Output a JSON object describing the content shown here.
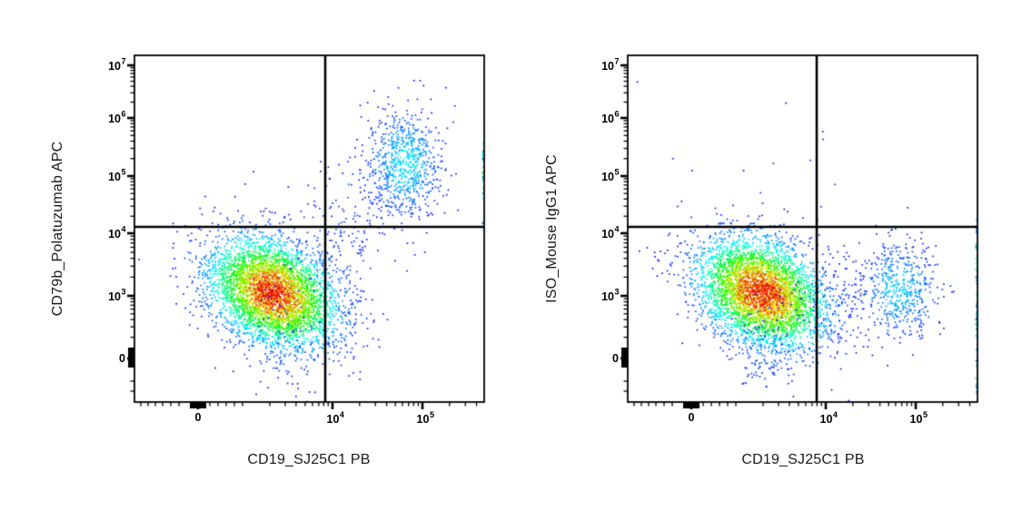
{
  "figure": {
    "background": "#ffffff",
    "plot_border_color": "#000000",
    "gate_color": "#000000",
    "point_colors_note": "density pseudocolor (jet): blue sparse to red dense",
    "density_colormap": [
      "#0000ff",
      "#00ffff",
      "#00cc00",
      "#ffff00",
      "#ff8800",
      "#ff0000"
    ]
  },
  "chart_data": [
    {
      "type": "scatter",
      "subtype": "flow-cytometry-density-dot-plot",
      "title": "",
      "xlabel": "CD19_SJ25C1 PB",
      "ylabel": "CD79b_Polatuzumab APC",
      "x_axis": {
        "scale": "biexponential",
        "range": [
          -1000,
          500000
        ],
        "majors": [
          {
            "base": "0",
            "exp": "",
            "frac": 0.1818
          },
          {
            "base": "10",
            "exp": "4",
            "frac": 0.5662
          },
          {
            "base": "10",
            "exp": "5",
            "frac": 0.8234
          }
        ],
        "minors": [
          0.0182,
          0.039,
          0.0597,
          0.0805,
          0.1039,
          0.1273,
          0.2156,
          0.239,
          0.2623,
          0.2857,
          0.3091,
          0.387,
          0.431,
          0.462,
          0.488,
          0.509,
          0.527,
          0.541,
          0.554,
          0.6437,
          0.6888,
          0.721,
          0.746,
          0.766,
          0.7837,
          0.7985,
          0.8117,
          0.9008,
          0.946,
          0.978
        ],
        "zero_blob": {
          "from": 0.1584,
          "to": 0.2052
        }
      },
      "y_axis": {
        "scale": "biexponential",
        "range": [
          -1000,
          15000000
        ],
        "majors": [
          {
            "base": "10",
            "exp": "7",
            "frac": 0.0288
          },
          {
            "base": "10",
            "exp": "6",
            "frac": 0.1806
          },
          {
            "base": "10",
            "exp": "5",
            "frac": 0.3482
          },
          {
            "base": "10",
            "exp": "4",
            "frac": 0.5131
          },
          {
            "base": "10",
            "exp": "3",
            "frac": 0.6937
          },
          {
            "base": "0",
            "exp": "",
            "frac": 0.8743
          }
        ],
        "minors": [
          0.0356,
          0.0434,
          0.0523,
          0.0625,
          0.0746,
          0.089,
          0.1081,
          0.1348,
          0.1882,
          0.1968,
          0.2065,
          0.2178,
          0.2312,
          0.2474,
          0.2683,
          0.2977,
          0.3558,
          0.3644,
          0.3741,
          0.3853,
          0.3984,
          0.4144,
          0.4351,
          0.4639,
          0.5214,
          0.5308,
          0.5413,
          0.5536,
          0.568,
          0.5855,
          0.608,
          0.6397,
          0.7021,
          0.7107,
          0.7207,
          0.7319,
          0.7455,
          0.762,
          0.7832,
          0.8131,
          0.9398,
          0.9686
        ],
        "zero_blob": {
          "from": 0.8429,
          "to": 0.9005
        }
      },
      "gate": {
        "x_frac": 0.5455,
        "y_frac": 0.4948,
        "x_value": "~8e3",
        "y_value": "~1.3e4"
      },
      "seed": 7,
      "populations": [
        {
          "name": "main CD19-mid CD79b~1e3",
          "cx": 0.395,
          "cy": 0.683,
          "sx": 0.0935,
          "sy": 0.081,
          "rho": 0.3,
          "count": 4200,
          "weight": 1.0
        },
        {
          "name": "CD19+ CD79b+ double positive ~ (5e4, 2e5)",
          "cx": 0.771,
          "cy": 0.3115,
          "sx": 0.0545,
          "sy": 0.0785,
          "rho": 0.0,
          "count": 750,
          "weight": 0.18
        },
        {
          "name": "bridge near gate corner",
          "cx": 0.56,
          "cy": 0.56,
          "sx": 0.075,
          "sy": 0.1,
          "rho": 0.25,
          "count": 130,
          "weight": 0.05
        },
        {
          "name": "upper bridge scatter",
          "cx": 0.66,
          "cy": 0.42,
          "sx": 0.07,
          "sy": 0.09,
          "rho": 0.0,
          "count": 80,
          "weight": 0.05
        },
        {
          "name": "low tail toward 0",
          "cx": 0.42,
          "cy": 0.84,
          "sx": 0.055,
          "sy": 0.062,
          "rho": 0.0,
          "count": 80,
          "weight": 0.06
        }
      ],
      "edge_pile": {
        "x": 0.997,
        "y_from": 0.24,
        "y_to": 0.52,
        "count": 30
      }
    },
    {
      "type": "scatter",
      "subtype": "flow-cytometry-density-dot-plot",
      "title": "",
      "xlabel": "CD19_SJ25C1 PB",
      "ylabel": "ISO_Mouse IgG1 APC",
      "x_axis": {
        "scale": "biexponential",
        "range": [
          -1000,
          500000
        ],
        "majors": [
          {
            "base": "0",
            "exp": "",
            "frac": 0.1818
          },
          {
            "base": "10",
            "exp": "4",
            "frac": 0.5662
          },
          {
            "base": "10",
            "exp": "5",
            "frac": 0.8234
          }
        ],
        "minors": [
          0.0182,
          0.039,
          0.0597,
          0.0805,
          0.1039,
          0.1273,
          0.2156,
          0.239,
          0.2623,
          0.2857,
          0.3091,
          0.387,
          0.431,
          0.462,
          0.488,
          0.509,
          0.527,
          0.541,
          0.554,
          0.6437,
          0.6888,
          0.721,
          0.746,
          0.766,
          0.7837,
          0.7985,
          0.8117,
          0.9008,
          0.946,
          0.978
        ],
        "zero_blob": {
          "from": 0.1584,
          "to": 0.2052
        }
      },
      "y_axis": {
        "scale": "biexponential",
        "range": [
          -1000,
          15000000
        ],
        "majors": [
          {
            "base": "10",
            "exp": "7",
            "frac": 0.0288
          },
          {
            "base": "10",
            "exp": "6",
            "frac": 0.1806
          },
          {
            "base": "10",
            "exp": "5",
            "frac": 0.3482
          },
          {
            "base": "10",
            "exp": "4",
            "frac": 0.5131
          },
          {
            "base": "10",
            "exp": "3",
            "frac": 0.6937
          },
          {
            "base": "0",
            "exp": "",
            "frac": 0.8743
          }
        ],
        "minors": [
          0.0356,
          0.0434,
          0.0523,
          0.0625,
          0.0746,
          0.089,
          0.1081,
          0.1348,
          0.1882,
          0.1968,
          0.2065,
          0.2178,
          0.2312,
          0.2474,
          0.2683,
          0.2977,
          0.3558,
          0.3644,
          0.3741,
          0.3853,
          0.3984,
          0.4144,
          0.4351,
          0.4639,
          0.5214,
          0.5308,
          0.5413,
          0.5536,
          0.568,
          0.5855,
          0.608,
          0.6397,
          0.7021,
          0.7107,
          0.7207,
          0.7319,
          0.7455,
          0.762,
          0.7832,
          0.8131,
          0.9398,
          0.9686
        ],
        "zero_blob": {
          "from": 0.8429,
          "to": 0.9005
        }
      },
      "gate": {
        "x_frac": 0.5403,
        "y_frac": 0.4948,
        "x_value": "~8e3",
        "y_value": "~1.3e4"
      },
      "seed": 13,
      "populations": [
        {
          "name": "main CD19-mid isotype~1e3",
          "cx": 0.3818,
          "cy": 0.683,
          "sx": 0.0935,
          "sy": 0.081,
          "rho": 0.3,
          "count": 4200,
          "weight": 1.0
        },
        {
          "name": "CD19+ isotype-negative ~ (5e4, 1e3)",
          "cx": 0.7714,
          "cy": 0.672,
          "sx": 0.058,
          "sy": 0.068,
          "rho": 0.0,
          "count": 550,
          "weight": 0.16
        },
        {
          "name": "bridge scatter",
          "cx": 0.58,
          "cy": 0.7,
          "sx": 0.07,
          "sy": 0.06,
          "rho": 0.0,
          "count": 90,
          "weight": 0.05
        },
        {
          "name": "low tail toward 0",
          "cx": 0.4,
          "cy": 0.85,
          "sx": 0.05,
          "sy": 0.07,
          "rho": 0.0,
          "count": 110,
          "weight": 0.06
        },
        {
          "name": "above-gate strays",
          "cx": 0.42,
          "cy": 0.38,
          "sx": 0.13,
          "sy": 0.12,
          "rho": 0.0,
          "count": 14,
          "weight": 0.03
        }
      ],
      "edge_pile": {
        "x": 0.997,
        "y_from": 0.46,
        "y_to": 0.975,
        "count": 55
      }
    }
  ]
}
